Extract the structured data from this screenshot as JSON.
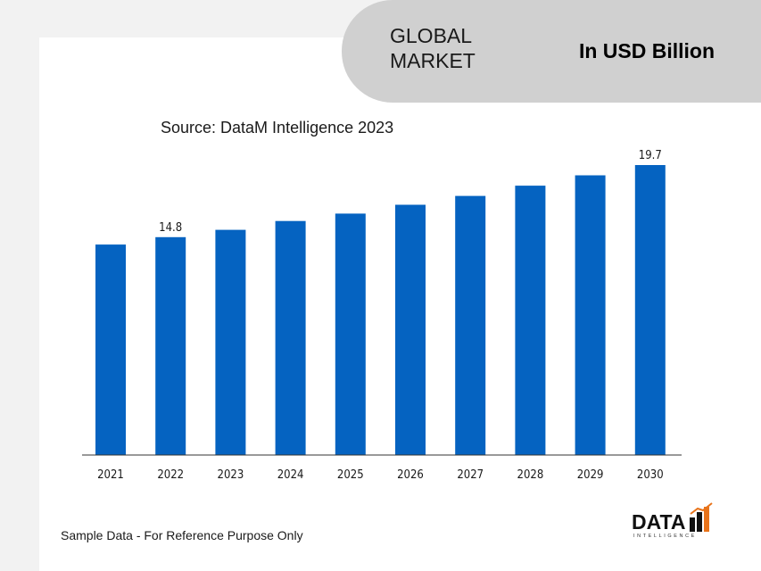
{
  "header": {
    "title": "GLOBAL\nMARKET",
    "unit": "In USD Billion"
  },
  "source": "Source: DataM Intelligence 2023",
  "footnote": "Sample Data - For Reference Purpose Only",
  "logo": {
    "text": "DATA",
    "subtext": "INTELLIGENCE"
  },
  "colors": {
    "bar": "#0563c1",
    "pill": "#d0d0d0",
    "logo_accent": "#e8731a"
  },
  "chart_data": {
    "type": "bar",
    "categories": [
      "2021",
      "2022",
      "2023",
      "2024",
      "2025",
      "2026",
      "2027",
      "2028",
      "2029",
      "2030"
    ],
    "values": [
      14.3,
      14.8,
      15.3,
      15.9,
      16.4,
      17.0,
      17.6,
      18.3,
      19.0,
      19.7
    ],
    "data_labels": [
      null,
      "14.8",
      null,
      null,
      null,
      null,
      null,
      null,
      null,
      "19.7"
    ],
    "xlabel": "",
    "ylabel": "",
    "ylim": [
      0,
      19.7
    ],
    "grid": false,
    "legend": "none"
  }
}
